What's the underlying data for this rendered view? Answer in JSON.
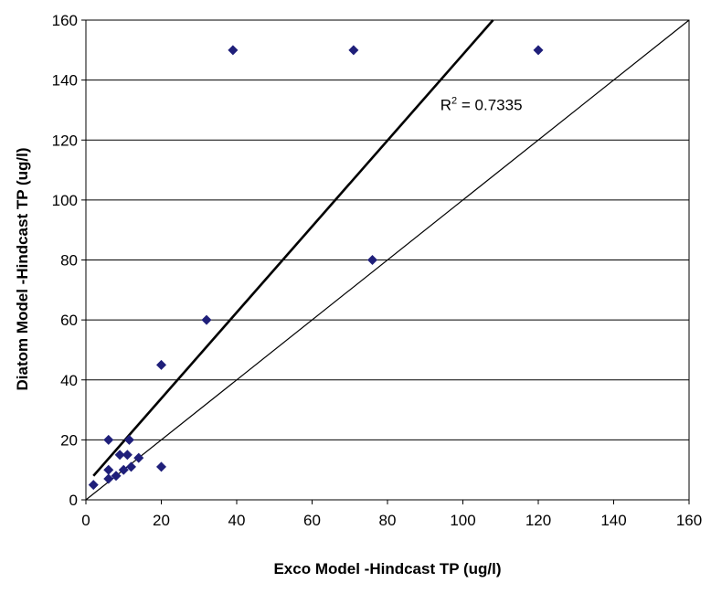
{
  "chart_data": {
    "type": "scatter",
    "title": "",
    "xlabel": "Exco Model -Hindcast TP (ug/l)",
    "ylabel": "Diatom Model -Hindcast TP (ug/l)",
    "xlim": [
      0,
      160
    ],
    "ylim": [
      0,
      160
    ],
    "x_ticks": [
      0,
      20,
      40,
      60,
      80,
      100,
      120,
      140,
      160
    ],
    "y_ticks": [
      0,
      20,
      40,
      60,
      80,
      100,
      120,
      140,
      160
    ],
    "grid": "horizontal",
    "legend": "none",
    "marker_color": "#1f1f7a",
    "points": [
      {
        "x": 2,
        "y": 5
      },
      {
        "x": 6,
        "y": 7
      },
      {
        "x": 6,
        "y": 10
      },
      {
        "x": 6,
        "y": 20
      },
      {
        "x": 8,
        "y": 8
      },
      {
        "x": 9,
        "y": 15
      },
      {
        "x": 10,
        "y": 10
      },
      {
        "x": 11,
        "y": 15
      },
      {
        "x": 11.5,
        "y": 20
      },
      {
        "x": 12,
        "y": 11
      },
      {
        "x": 14,
        "y": 14
      },
      {
        "x": 20,
        "y": 45
      },
      {
        "x": 20,
        "y": 11
      },
      {
        "x": 32,
        "y": 60
      },
      {
        "x": 39,
        "y": 150
      },
      {
        "x": 71,
        "y": 150
      },
      {
        "x": 76,
        "y": 80
      },
      {
        "x": 120,
        "y": 150
      }
    ],
    "lines": [
      {
        "name": "regression",
        "x1": 2,
        "y1": 8,
        "x2": 108,
        "y2": 160,
        "style": "bold"
      },
      {
        "name": "one-to-one",
        "x1": 0,
        "y1": 0,
        "x2": 160,
        "y2": 160,
        "style": "thin"
      }
    ],
    "annotation": {
      "prefix": "R",
      "superscript": "2",
      "value_text": " = 0.7335",
      "x": 94,
      "y": 130
    }
  }
}
